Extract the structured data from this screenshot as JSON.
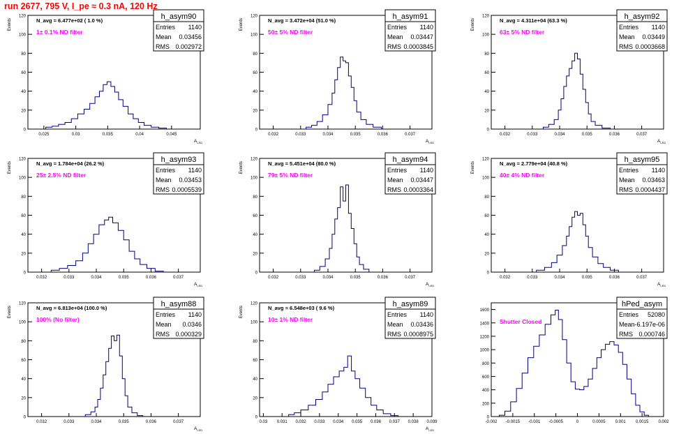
{
  "header": {
    "title": "run 2677,   795 V, I_pe ≈ 0.3 nA, 120 Hz"
  },
  "colors": {
    "histogram": "#00007f",
    "annotation": "#ff00ff",
    "title": "#ff0000",
    "frame": "#000000"
  },
  "chart_data": [
    {
      "type": "histogram",
      "name": "h_asym90",
      "stats": {
        "Entries": "1140",
        "Mean": "0.03456",
        "RMS": "0.002972"
      },
      "navg": "N_avg = 6.477e+02 ( 1.0 %)",
      "note": "1± 0.1% ND filter",
      "xlabel": "A_LED",
      "ylabel": "Events",
      "xlim": [
        0.0225,
        0.0495
      ],
      "ylim": [
        0,
        120
      ],
      "xticks": [
        "0.025",
        "0.03",
        "0.035",
        "0.04",
        "0.045"
      ],
      "xtick_values": [
        0.025,
        0.03,
        0.035,
        0.04,
        0.045
      ],
      "yticks": [
        0,
        20,
        40,
        60,
        80,
        100,
        120
      ],
      "bins": [
        [
          0.0258,
          2
        ],
        [
          0.0268,
          3
        ],
        [
          0.0278,
          5
        ],
        [
          0.0288,
          7
        ],
        [
          0.0298,
          11
        ],
        [
          0.0308,
          16
        ],
        [
          0.0318,
          21
        ],
        [
          0.0326,
          27
        ],
        [
          0.0334,
          34
        ],
        [
          0.034,
          40
        ],
        [
          0.0346,
          47
        ],
        [
          0.0352,
          50
        ],
        [
          0.0358,
          45
        ],
        [
          0.0364,
          39
        ],
        [
          0.037,
          31
        ],
        [
          0.0378,
          24
        ],
        [
          0.0386,
          16
        ],
        [
          0.0394,
          11
        ],
        [
          0.0402,
          7
        ],
        [
          0.0412,
          4
        ],
        [
          0.0424,
          2
        ],
        [
          0.0436,
          1
        ]
      ]
    },
    {
      "type": "histogram",
      "name": "h_asym91",
      "stats": {
        "Entries": "1140",
        "Mean": "0.03447",
        "RMS": "0.0003845"
      },
      "navg": "N_avg = 3.472e+04 (51.0 %)",
      "note": "50± 5% ND filter",
      "xlabel": "A_LED",
      "ylabel": "Events",
      "xlim": [
        0.0315,
        0.0378
      ],
      "ylim": [
        0,
        120
      ],
      "xticks": [
        "0.032",
        "0.033",
        "0.034",
        "0.035",
        "0.036",
        "0.037"
      ],
      "xtick_values": [
        0.032,
        0.033,
        0.034,
        0.035,
        0.036,
        0.037
      ],
      "yticks": [
        0,
        20,
        40,
        60,
        80,
        100,
        120
      ],
      "bins": [
        [
          0.0333,
          2
        ],
        [
          0.0335,
          4
        ],
        [
          0.0337,
          8
        ],
        [
          0.0339,
          15
        ],
        [
          0.0341,
          26
        ],
        [
          0.0342,
          38
        ],
        [
          0.0343,
          52
        ],
        [
          0.0344,
          65
        ],
        [
          0.0345,
          76
        ],
        [
          0.0346,
          72
        ],
        [
          0.0347,
          70
        ],
        [
          0.0348,
          56
        ],
        [
          0.0349,
          44
        ],
        [
          0.035,
          30
        ],
        [
          0.0351,
          18
        ],
        [
          0.0353,
          10
        ],
        [
          0.0355,
          5
        ],
        [
          0.0358,
          2
        ]
      ]
    },
    {
      "type": "histogram",
      "name": "h_asym92",
      "stats": {
        "Entries": "1140",
        "Mean": "0.03449",
        "RMS": "0.0003668"
      },
      "navg": "N_avg = 4.311e+04 (63.3 %)",
      "note": "63± 5% ND filter",
      "xlabel": "A_LED",
      "ylabel": "Events",
      "xlim": [
        0.0315,
        0.0378
      ],
      "ylim": [
        0,
        120
      ],
      "xticks": [
        "0.032",
        "0.033",
        "0.034",
        "0.035",
        "0.036",
        "0.037"
      ],
      "xtick_values": [
        0.032,
        0.033,
        0.034,
        0.035,
        0.036,
        0.037
      ],
      "yticks": [
        0,
        20,
        40,
        60,
        80,
        100,
        120
      ],
      "bins": [
        [
          0.0335,
          2
        ],
        [
          0.0337,
          5
        ],
        [
          0.0339,
          10
        ],
        [
          0.034,
          20
        ],
        [
          0.0341,
          32
        ],
        [
          0.0342,
          45
        ],
        [
          0.0343,
          56
        ],
        [
          0.0344,
          64
        ],
        [
          0.0345,
          72
        ],
        [
          0.0346,
          80
        ],
        [
          0.0347,
          74
        ],
        [
          0.0348,
          58
        ],
        [
          0.0349,
          42
        ],
        [
          0.035,
          28
        ],
        [
          0.0351,
          16
        ],
        [
          0.0352,
          8
        ],
        [
          0.0354,
          4
        ],
        [
          0.0357,
          1
        ]
      ]
    },
    {
      "type": "histogram",
      "name": "h_asym93",
      "stats": {
        "Entries": "1140",
        "Mean": "0.03453",
        "RMS": "0.0005539"
      },
      "navg": "N_avg = 1.784e+04 (26.2 %)",
      "note": "25± 2.5% ND filter",
      "xlabel": "A_LED",
      "ylabel": "Events",
      "xlim": [
        0.0315,
        0.0378
      ],
      "ylim": [
        0,
        120
      ],
      "xticks": [
        "0.032",
        "0.033",
        "0.034",
        "0.035",
        "0.036",
        "0.037"
      ],
      "xtick_values": [
        0.032,
        0.033,
        0.034,
        0.035,
        0.036,
        0.037
      ],
      "yticks": [
        0,
        20,
        40,
        60,
        80,
        100,
        120
      ],
      "bins": [
        [
          0.0325,
          2
        ],
        [
          0.0328,
          4
        ],
        [
          0.0331,
          7
        ],
        [
          0.0334,
          12
        ],
        [
          0.0336,
          20
        ],
        [
          0.0338,
          30
        ],
        [
          0.034,
          40
        ],
        [
          0.0342,
          50
        ],
        [
          0.0344,
          55
        ],
        [
          0.0345,
          58
        ],
        [
          0.0347,
          52
        ],
        [
          0.0349,
          44
        ],
        [
          0.0351,
          34
        ],
        [
          0.0353,
          22
        ],
        [
          0.0355,
          14
        ],
        [
          0.0357,
          8
        ],
        [
          0.036,
          4
        ],
        [
          0.0363,
          1
        ]
      ]
    },
    {
      "type": "histogram",
      "name": "h_asym94",
      "stats": {
        "Entries": "1140",
        "Mean": "0.03447",
        "RMS": "0.0003364"
      },
      "navg": "N_avg = 5.451e+04 (80.0 %)",
      "note": "79± 5% ND filter",
      "xlabel": "A_LED",
      "ylabel": "Events",
      "xlim": [
        0.0315,
        0.0378
      ],
      "ylim": [
        0,
        120
      ],
      "xticks": [
        "0.032",
        "0.033",
        "0.034",
        "0.035",
        "0.036",
        "0.037"
      ],
      "xtick_values": [
        0.032,
        0.033,
        0.034,
        0.035,
        0.036,
        0.037
      ],
      "yticks": [
        0,
        20,
        40,
        60,
        80,
        100,
        120
      ],
      "bins": [
        [
          0.0336,
          2
        ],
        [
          0.0338,
          6
        ],
        [
          0.034,
          14
        ],
        [
          0.0341,
          25
        ],
        [
          0.0342,
          40
        ],
        [
          0.0343,
          56
        ],
        [
          0.0344,
          68
        ],
        [
          0.0345,
          90
        ],
        [
          0.0346,
          75
        ],
        [
          0.0347,
          92
        ],
        [
          0.0348,
          62
        ],
        [
          0.0349,
          46
        ],
        [
          0.035,
          30
        ],
        [
          0.0351,
          16
        ],
        [
          0.0352,
          8
        ],
        [
          0.0354,
          3
        ]
      ]
    },
    {
      "type": "histogram",
      "name": "h_asym95",
      "stats": {
        "Entries": "1140",
        "Mean": "0.03463",
        "RMS": "0.0004437"
      },
      "navg": "N_avg = 2.779e+04 (40.8 %)",
      "note": "40± 4% ND filter",
      "xlabel": "A_LED",
      "ylabel": "Events",
      "xlim": [
        0.0315,
        0.0378
      ],
      "ylim": [
        0,
        120
      ],
      "xticks": [
        "0.032",
        "0.033",
        "0.034",
        "0.035",
        "0.036",
        "0.037"
      ],
      "xtick_values": [
        0.032,
        0.033,
        0.034,
        0.035,
        0.036,
        0.037
      ],
      "yticks": [
        0,
        20,
        40,
        60,
        80,
        100,
        120
      ],
      "bins": [
        [
          0.0333,
          2
        ],
        [
          0.0336,
          5
        ],
        [
          0.0338,
          10
        ],
        [
          0.034,
          18
        ],
        [
          0.0342,
          28
        ],
        [
          0.0343,
          38
        ],
        [
          0.0344,
          48
        ],
        [
          0.0345,
          58
        ],
        [
          0.0346,
          64
        ],
        [
          0.0347,
          60
        ],
        [
          0.0348,
          62
        ],
        [
          0.0349,
          50
        ],
        [
          0.035,
          38
        ],
        [
          0.0351,
          26
        ],
        [
          0.0353,
          16
        ],
        [
          0.0355,
          9
        ],
        [
          0.0357,
          5
        ],
        [
          0.036,
          2
        ]
      ]
    },
    {
      "type": "histogram",
      "name": "h_asym88",
      "stats": {
        "Entries": "1140",
        "Mean": "0.0346",
        "RMS": "0.000329"
      },
      "navg": "N_avg = 6.813e+04 (100.0 %)",
      "note": "100% (No filter)",
      "xlabel": "A_LED",
      "ylabel": "Events",
      "xlim": [
        0.0315,
        0.0378
      ],
      "ylim": [
        0,
        120
      ],
      "xticks": [
        "0.032",
        "0.033",
        "0.034",
        "0.035",
        "0.036",
        "0.037"
      ],
      "xtick_values": [
        0.032,
        0.033,
        0.034,
        0.035,
        0.036,
        0.037
      ],
      "yticks": [
        0,
        20,
        40,
        60,
        80,
        100,
        120
      ],
      "bins": [
        [
          0.0337,
          2
        ],
        [
          0.0339,
          5
        ],
        [
          0.034,
          10
        ],
        [
          0.0341,
          18
        ],
        [
          0.0342,
          30
        ],
        [
          0.0343,
          44
        ],
        [
          0.0344,
          58
        ],
        [
          0.0345,
          72
        ],
        [
          0.0346,
          85
        ],
        [
          0.0347,
          80
        ],
        [
          0.0348,
          86
        ],
        [
          0.0349,
          64
        ],
        [
          0.035,
          40
        ],
        [
          0.0351,
          22
        ],
        [
          0.0352,
          10
        ],
        [
          0.0354,
          4
        ],
        [
          0.0356,
          1
        ]
      ]
    },
    {
      "type": "histogram",
      "name": "h_asym89",
      "stats": {
        "Entries": "1140",
        "Mean": "0.03436",
        "RMS": "0.0008975"
      },
      "navg": "N_avg = 6.548e+03 ( 9.6 %)",
      "note": "10± 1% ND filter",
      "xlabel": "A_LED",
      "ylabel": "Events",
      "xlim": [
        0.0298,
        0.039
      ],
      "ylim": [
        0,
        120
      ],
      "xticks": [
        "0.03",
        "0.031",
        "0.032",
        "0.033",
        "0.034",
        "0.035",
        "0.036",
        "0.037",
        "0.038",
        "0.039"
      ],
      "xtick_values": [
        0.03,
        0.031,
        0.032,
        0.033,
        0.034,
        0.035,
        0.036,
        0.037,
        0.038,
        0.039
      ],
      "yticks": [
        0,
        20,
        40,
        60,
        80,
        100,
        120
      ],
      "bins": [
        [
          0.0315,
          2
        ],
        [
          0.0318,
          4
        ],
        [
          0.0322,
          7
        ],
        [
          0.0326,
          12
        ],
        [
          0.033,
          18
        ],
        [
          0.0333,
          26
        ],
        [
          0.0336,
          34
        ],
        [
          0.0339,
          42
        ],
        [
          0.0342,
          48
        ],
        [
          0.0344,
          52
        ],
        [
          0.0346,
          64
        ],
        [
          0.0348,
          48
        ],
        [
          0.035,
          40
        ],
        [
          0.0353,
          30
        ],
        [
          0.0356,
          20
        ],
        [
          0.0359,
          12
        ],
        [
          0.0362,
          7
        ],
        [
          0.0366,
          3
        ],
        [
          0.037,
          1
        ]
      ]
    },
    {
      "type": "histogram",
      "name": "hPed_asym",
      "stats": {
        "Entries": "52080",
        "Mean": "-6.197e-06",
        "RMS": "0.000746"
      },
      "navg": "",
      "note": "Shutter Closed",
      "xlabel": "",
      "ylabel": "",
      "xlim": [
        -0.002,
        0.002
      ],
      "ylim": [
        0,
        1700
      ],
      "xticks": [
        "-0.002",
        "-0.0015",
        "-0.001",
        "-0.0005",
        "0",
        "0.0005",
        "0.001",
        "0.0015",
        "0.002"
      ],
      "xtick_values": [
        -0.002,
        -0.0015,
        -0.001,
        -0.0005,
        0,
        0.0005,
        0.001,
        0.0015,
        0.002
      ],
      "yticks": [
        0,
        200,
        400,
        600,
        800,
        1000,
        1200,
        1400,
        1600
      ],
      "bins": [
        [
          -0.00175,
          20
        ],
        [
          -0.00162,
          80
        ],
        [
          -0.00148,
          220
        ],
        [
          -0.00135,
          420
        ],
        [
          -0.00122,
          650
        ],
        [
          -0.00108,
          880
        ],
        [
          -0.00095,
          1050
        ],
        [
          -0.00082,
          1220
        ],
        [
          -0.00068,
          1380
        ],
        [
          -0.00055,
          1520
        ],
        [
          -0.00048,
          1590
        ],
        [
          -0.0004,
          1450
        ],
        [
          -0.0003,
          1150
        ],
        [
          -0.0002,
          800
        ],
        [
          -0.0001,
          520
        ],
        [
          0,
          410
        ],
        [
          0.0001,
          400
        ],
        [
          0.0002,
          450
        ],
        [
          0.0003,
          560
        ],
        [
          0.0004,
          720
        ],
        [
          0.0005,
          880
        ],
        [
          0.0006,
          1000
        ],
        [
          0.0007,
          1080
        ],
        [
          0.0008,
          1120
        ],
        [
          0.0009,
          1070
        ],
        [
          0.001,
          960
        ],
        [
          0.0011,
          780
        ],
        [
          0.0012,
          560
        ],
        [
          0.0013,
          340
        ],
        [
          0.0014,
          170
        ],
        [
          0.0015,
          70
        ],
        [
          0.0016,
          20
        ]
      ]
    }
  ]
}
